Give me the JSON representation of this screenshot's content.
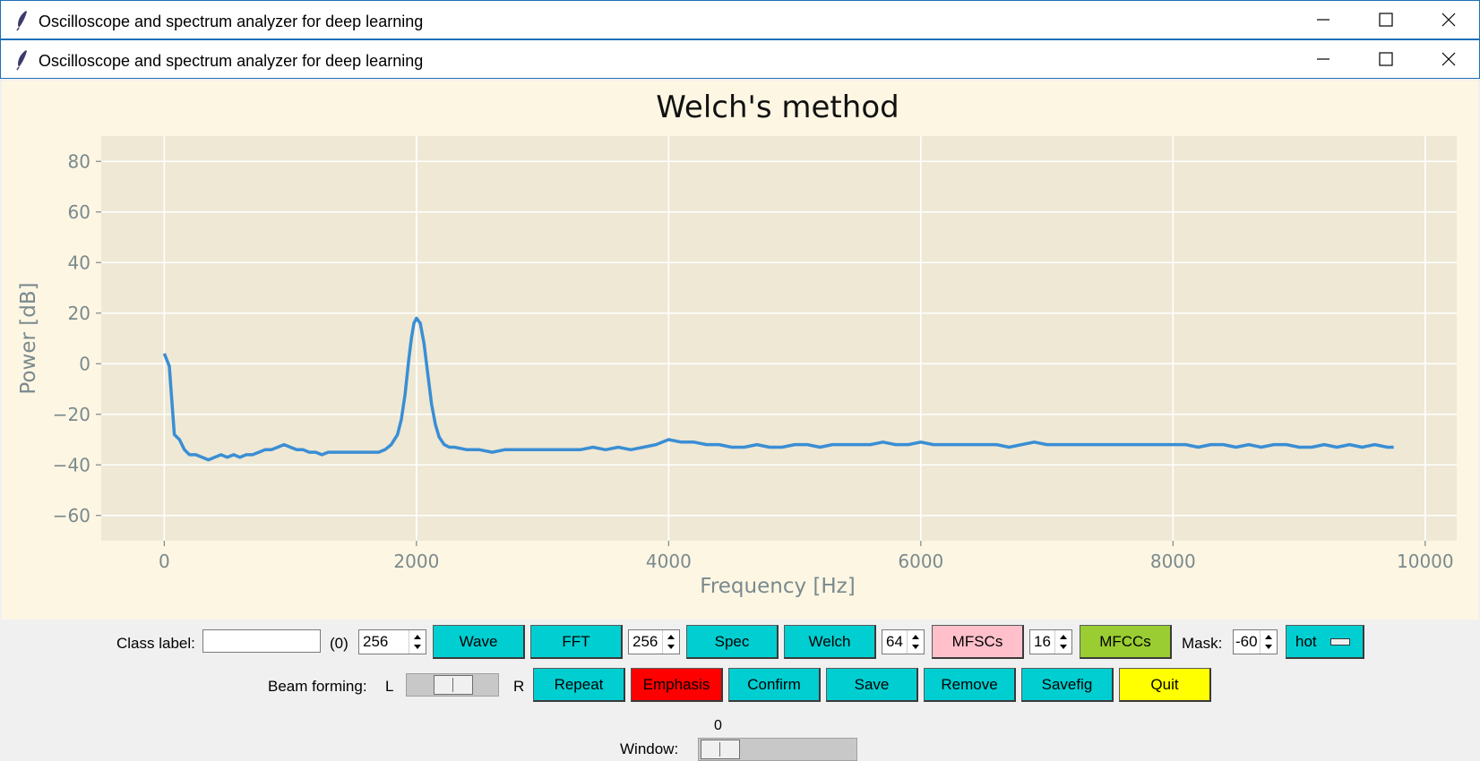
{
  "window": {
    "title": "Oscilloscope and spectrum analyzer for deep learning"
  },
  "icons": {
    "app": "feather-icon",
    "minimize": "minimize-icon",
    "maximize": "maximize-icon",
    "close": "close-icon"
  },
  "colors": {
    "plot_bg": "#fdf6e3",
    "axes_bg": "#eee8d5",
    "line": "#3a8ed4",
    "cyan": "#00ced1",
    "pink": "#ffc0cb",
    "green": "#9acd32",
    "red": "#ff0000",
    "yellow": "#ffff00"
  },
  "chart_data": {
    "type": "line",
    "title": "Welch's method",
    "xlabel": "Frequency [Hz]",
    "ylabel": "Power [dB]",
    "xlim": [
      -500,
      10250
    ],
    "ylim": [
      -70,
      90
    ],
    "xticks": [
      0,
      2000,
      4000,
      6000,
      8000,
      10000
    ],
    "xtick_labels": [
      "0",
      "2000",
      "4000",
      "6000",
      "8000",
      "10000"
    ],
    "yticks": [
      80,
      60,
      40,
      20,
      0,
      -20,
      -40,
      -60
    ],
    "ytick_labels": [
      "80",
      "60",
      "40",
      "20",
      "0",
      "−20",
      "−40",
      "−60"
    ],
    "grid": true,
    "series": [
      {
        "x": [
          0,
          40,
          80,
          120,
          160,
          200,
          250,
          300,
          350,
          400,
          450,
          500,
          550,
          600,
          650,
          700,
          750,
          800,
          850,
          900,
          950,
          1000,
          1050,
          1100,
          1150,
          1200,
          1250,
          1300,
          1350,
          1400,
          1450,
          1500,
          1550,
          1600,
          1650,
          1700,
          1750,
          1800,
          1850,
          1880,
          1910,
          1940,
          1960,
          1980,
          2000,
          2030,
          2060,
          2090,
          2120,
          2150,
          2180,
          2220,
          2260,
          2300,
          2400,
          2500,
          2600,
          2700,
          2800,
          2900,
          3000,
          3100,
          3200,
          3300,
          3400,
          3500,
          3600,
          3700,
          3800,
          3900,
          4000,
          4100,
          4200,
          4300,
          4400,
          4500,
          4600,
          4700,
          4800,
          4900,
          5000,
          5100,
          5200,
          5300,
          5400,
          5500,
          5600,
          5700,
          5800,
          5900,
          6000,
          6100,
          6200,
          6300,
          6400,
          6500,
          6600,
          6700,
          6800,
          6900,
          7000,
          7100,
          7200,
          7300,
          7400,
          7500,
          7600,
          7700,
          7800,
          7900,
          8000,
          8100,
          8200,
          8300,
          8400,
          8500,
          8600,
          8700,
          8800,
          8900,
          9000,
          9100,
          9200,
          9300,
          9400,
          9500,
          9600,
          9700,
          9750
        ],
        "y": [
          4,
          -1,
          -28,
          -30,
          -34,
          -36,
          -36,
          -37,
          -38,
          -37,
          -36,
          -37,
          -36,
          -37,
          -36,
          -36,
          -35,
          -34,
          -34,
          -33,
          -32,
          -33,
          -34,
          -34,
          -35,
          -35,
          -36,
          -35,
          -35,
          -35,
          -35,
          -35,
          -35,
          -35,
          -35,
          -35,
          -34,
          -32,
          -28,
          -22,
          -12,
          2,
          10,
          16,
          18,
          16,
          8,
          -4,
          -16,
          -24,
          -29,
          -32,
          -33,
          -33,
          -34,
          -34,
          -35,
          -34,
          -34,
          -34,
          -34,
          -34,
          -34,
          -34,
          -33,
          -34,
          -33,
          -34,
          -33,
          -32,
          -30,
          -31,
          -31,
          -32,
          -32,
          -33,
          -33,
          -32,
          -33,
          -33,
          -32,
          -32,
          -33,
          -32,
          -32,
          -32,
          -32,
          -31,
          -32,
          -32,
          -31,
          -32,
          -32,
          -32,
          -32,
          -32,
          -32,
          -33,
          -32,
          -31,
          -32,
          -32,
          -32,
          -32,
          -32,
          -32,
          -32,
          -32,
          -32,
          -32,
          -32,
          -32,
          -33,
          -32,
          -32,
          -33,
          -32,
          -33,
          -32,
          -32,
          -33,
          -33,
          -32,
          -33,
          -32,
          -33,
          -32,
          -33,
          -33
        ]
      }
    ]
  },
  "controls": {
    "class_label": "Class label:",
    "class_value": "",
    "class_index": "(0)",
    "spin_a": "256",
    "wave": "Wave",
    "fft": "FFT",
    "spin_b": "256",
    "spec": "Spec",
    "welch": "Welch",
    "spin_c": "64",
    "mfscs": "MFSCs",
    "spin_d": "16",
    "mfccs": "MFCCs",
    "mask_label": "Mask:",
    "mask_value": "-60",
    "colormap": "hot",
    "beam_label": "Beam forming:",
    "beam_left": "L",
    "beam_right": "R",
    "repeat": "Repeat",
    "emphasis": "Emphasis",
    "confirm": "Confirm",
    "save": "Save",
    "remove": "Remove",
    "savefig": "Savefig",
    "quit": "Quit",
    "window_value": "0",
    "window_label": "Window:"
  }
}
